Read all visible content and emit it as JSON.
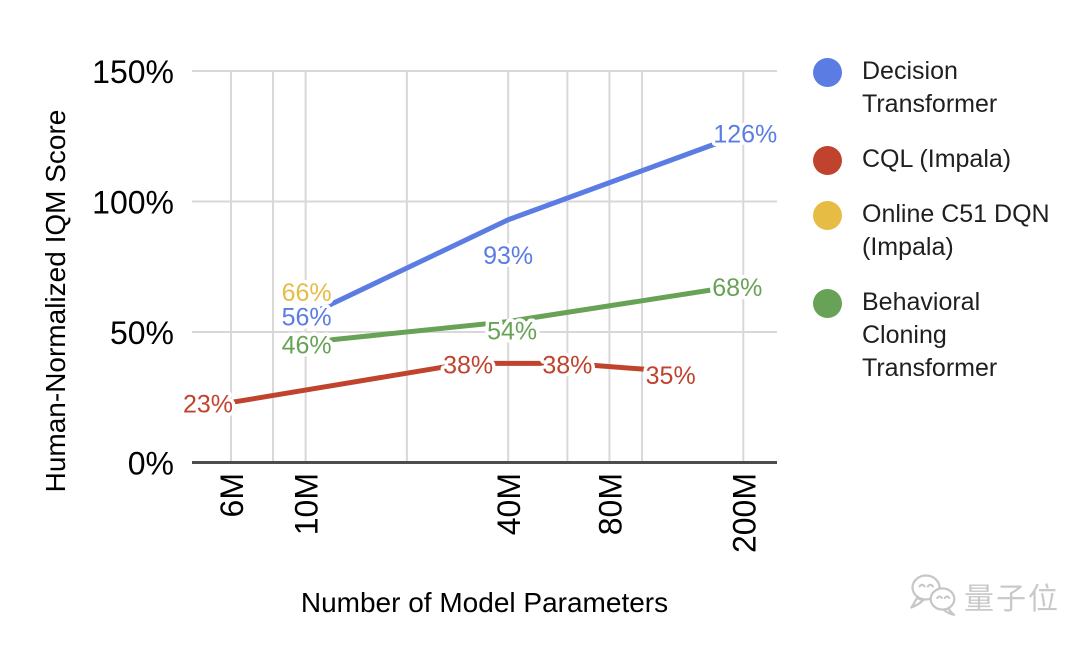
{
  "chart_data": {
    "type": "line",
    "title": "",
    "xlabel": "Number of Model Parameters",
    "ylabel": "Human-Normalized IQM Score",
    "x_scale": "log",
    "x_unit": "M (millions of parameters)",
    "ylim": [
      0,
      150
    ],
    "grid": true,
    "legend_position": "right",
    "y_ticks": [
      {
        "value": 0,
        "label": "0%"
      },
      {
        "value": 50,
        "label": "50%"
      },
      {
        "value": 100,
        "label": "100%"
      },
      {
        "value": 150,
        "label": "150%"
      }
    ],
    "x_ticks": [
      {
        "value": 6,
        "label": "6M"
      },
      {
        "value": 10,
        "label": "10M"
      },
      {
        "value": 40,
        "label": "40M"
      },
      {
        "value": 80,
        "label": "80M"
      },
      {
        "value": 200,
        "label": "200M"
      }
    ],
    "x_gridlines": [
      6,
      8,
      10,
      20,
      40,
      60,
      80,
      100,
      200
    ],
    "series": [
      {
        "name": "Decision Transformer",
        "color": "#5b7ce2",
        "points": [
          {
            "x": 10,
            "y": 56,
            "label": "56%",
            "ldx": 1,
            "ldy": 0
          },
          {
            "x": 40,
            "y": 93,
            "label": "93%",
            "ldx": 0,
            "ldy": 35
          },
          {
            "x": 200,
            "y": 126,
            "label": "126%",
            "ldx": 2,
            "ldy": 0
          }
        ]
      },
      {
        "name": "CQL (Impala)",
        "color": "#c0432e",
        "points": [
          {
            "x": 6,
            "y": 23,
            "label": "23%",
            "ldx": -23,
            "ldy": 1
          },
          {
            "x": 30,
            "y": 38,
            "label": "38%",
            "ldx": 2,
            "ldy": 1
          },
          {
            "x": 60,
            "y": 38,
            "label": "38%",
            "ldx": 0,
            "ldy": 1
          },
          {
            "x": 120,
            "y": 35,
            "label": "35%",
            "ldx": 2,
            "ldy": 4
          }
        ]
      },
      {
        "name": "Online C51 DQN (Impala)",
        "color": "#e6bc45",
        "points": [
          {
            "x": 10,
            "y": 66,
            "label": "66%",
            "ldx": 1,
            "ldy": 2
          }
        ]
      },
      {
        "name": "Behavioral Cloning Transformer",
        "color": "#68a257",
        "points": [
          {
            "x": 10,
            "y": 46,
            "label": "46%",
            "ldx": 1,
            "ldy": 2
          },
          {
            "x": 40,
            "y": 54,
            "label": "54%",
            "ldx": 4,
            "ldy": 9
          },
          {
            "x": 200,
            "y": 68,
            "label": "68%",
            "ldx": -6,
            "ldy": 2
          }
        ]
      }
    ]
  },
  "watermark": {
    "text": "量子位",
    "icon": "wechat-chat-bubbles-icon"
  }
}
